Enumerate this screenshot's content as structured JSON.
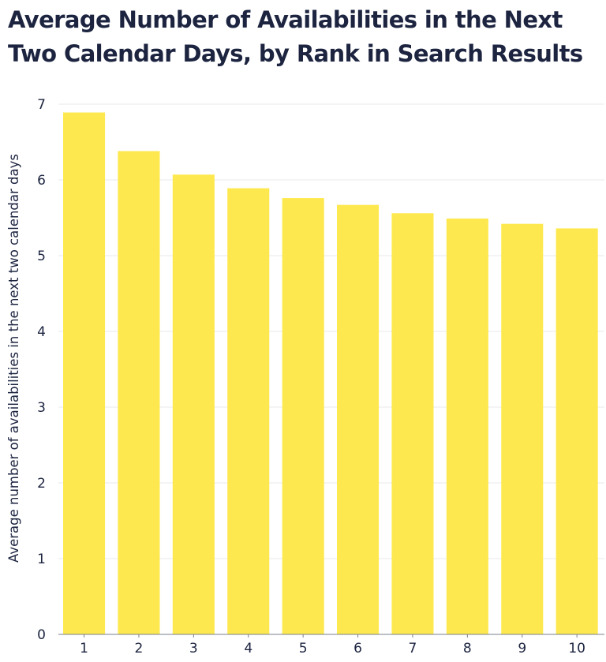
{
  "chart_data": {
    "type": "bar",
    "title": "Average Number of Availabilities in the Next Two Calendar Days, by Rank in Search Results",
    "xlabel": "",
    "ylabel": "Average number of availabilities in the next two calendar days",
    "categories": [
      "1",
      "2",
      "3",
      "4",
      "5",
      "6",
      "7",
      "8",
      "9",
      "10"
    ],
    "values": [
      6.89,
      6.38,
      6.07,
      5.89,
      5.76,
      5.67,
      5.56,
      5.49,
      5.42,
      5.36
    ],
    "ylim": [
      0,
      7
    ],
    "yticks": [
      "0",
      "1",
      "2",
      "3",
      "4",
      "5",
      "6",
      "7"
    ],
    "grid": true,
    "legend": "none",
    "colors": {
      "bar": "#fde94f",
      "text": "#1c2440",
      "grid": "#e9e9e9",
      "axis": "#7a7f8e"
    }
  }
}
